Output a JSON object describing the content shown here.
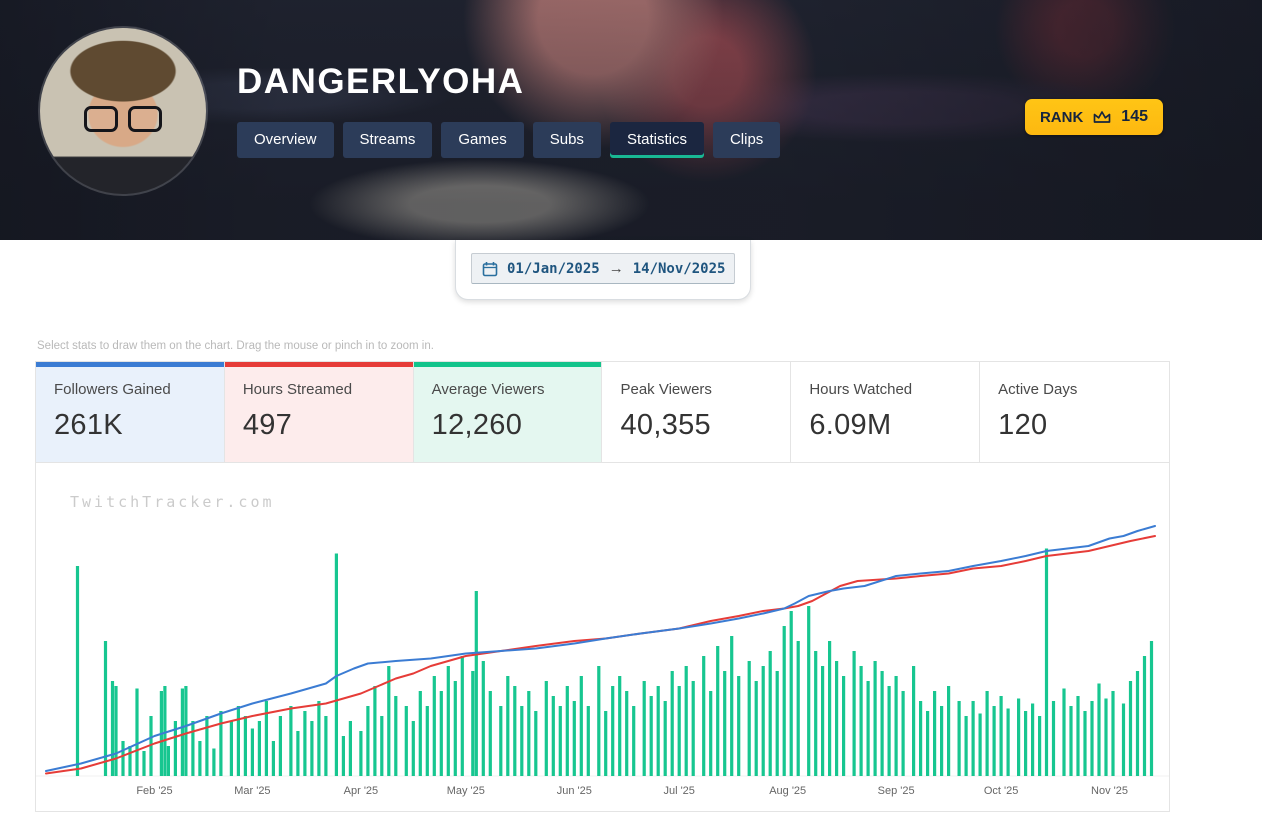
{
  "header": {
    "title": "DANGERLYOHA",
    "tabs": [
      {
        "label": "Overview",
        "active": false
      },
      {
        "label": "Streams",
        "active": false
      },
      {
        "label": "Games",
        "active": false
      },
      {
        "label": "Subs",
        "active": false
      },
      {
        "label": "Statistics",
        "active": true
      },
      {
        "label": "Clips",
        "active": false
      }
    ],
    "rank": {
      "label": "RANK",
      "value": "145"
    }
  },
  "date_range": {
    "start": "01/Jan/2025",
    "separator": "→",
    "end": "14/Nov/2025"
  },
  "hint": "Select stats to draw them on the chart. Drag the mouse or pinch in to zoom in.",
  "stats": [
    {
      "label": "Followers Gained",
      "value": "261K",
      "selected": true,
      "color": "#3b7cd3",
      "tint": "#e9f1fb"
    },
    {
      "label": "Hours Streamed",
      "value": "497",
      "selected": true,
      "color": "#e63c38",
      "tint": "#fdecec"
    },
    {
      "label": "Average Viewers",
      "value": "12,260",
      "selected": true,
      "color": "#12c48b",
      "tint": "#e4f7f0"
    },
    {
      "label": "Peak Viewers",
      "value": "40,355",
      "selected": false,
      "color": null,
      "tint": null
    },
    {
      "label": "Hours Watched",
      "value": "6.09M",
      "selected": false,
      "color": null,
      "tint": null
    },
    {
      "label": "Active Days",
      "value": "120",
      "selected": false,
      "color": null,
      "tint": null
    }
  ],
  "watermark": "TwitchTracker.com",
  "chart_data": {
    "type": "composite",
    "title": "",
    "x_unit": "day_of_year_2025",
    "x_range": [
      0,
      317
    ],
    "y_range": [
      0,
      100
    ],
    "y_unit": "relative_percent_of_plot_height",
    "grid": false,
    "legend": "none",
    "x_ticks": [
      {
        "day": 31,
        "label": "Feb '25"
      },
      {
        "day": 59,
        "label": "Mar '25"
      },
      {
        "day": 90,
        "label": "Apr '25"
      },
      {
        "day": 120,
        "label": "May '25"
      },
      {
        "day": 151,
        "label": "Jun '25"
      },
      {
        "day": 181,
        "label": "Jul '25"
      },
      {
        "day": 212,
        "label": "Aug '25"
      },
      {
        "day": 243,
        "label": "Sep '25"
      },
      {
        "day": 273,
        "label": "Oct '25"
      },
      {
        "day": 304,
        "label": "Nov '25"
      }
    ],
    "series": [
      {
        "name": "Average Viewers",
        "type": "bar",
        "color": "#17c690",
        "points": [
          [
            9,
            84
          ],
          [
            17,
            54
          ],
          [
            19,
            38
          ],
          [
            20,
            36
          ],
          [
            22,
            14
          ],
          [
            24,
            12
          ],
          [
            26,
            35
          ],
          [
            28,
            10
          ],
          [
            30,
            24
          ],
          [
            33,
            34
          ],
          [
            34,
            36
          ],
          [
            35,
            12
          ],
          [
            37,
            22
          ],
          [
            39,
            35
          ],
          [
            40,
            36
          ],
          [
            42,
            22
          ],
          [
            44,
            14
          ],
          [
            46,
            24
          ],
          [
            48,
            11
          ],
          [
            50,
            26
          ],
          [
            53,
            22
          ],
          [
            55,
            28
          ],
          [
            57,
            24
          ],
          [
            59,
            19
          ],
          [
            61,
            22
          ],
          [
            63,
            30
          ],
          [
            65,
            14
          ],
          [
            67,
            24
          ],
          [
            70,
            28
          ],
          [
            72,
            18
          ],
          [
            74,
            26
          ],
          [
            76,
            22
          ],
          [
            78,
            30
          ],
          [
            80,
            24
          ],
          [
            83,
            89
          ],
          [
            85,
            16
          ],
          [
            87,
            22
          ],
          [
            90,
            18
          ],
          [
            92,
            28
          ],
          [
            94,
            36
          ],
          [
            96,
            24
          ],
          [
            98,
            44
          ],
          [
            100,
            32
          ],
          [
            103,
            28
          ],
          [
            105,
            22
          ],
          [
            107,
            34
          ],
          [
            109,
            28
          ],
          [
            111,
            40
          ],
          [
            113,
            34
          ],
          [
            115,
            44
          ],
          [
            117,
            38
          ],
          [
            119,
            48
          ],
          [
            122,
            42
          ],
          [
            123,
            74
          ],
          [
            125,
            46
          ],
          [
            127,
            34
          ],
          [
            130,
            28
          ],
          [
            132,
            40
          ],
          [
            134,
            36
          ],
          [
            136,
            28
          ],
          [
            138,
            34
          ],
          [
            140,
            26
          ],
          [
            143,
            38
          ],
          [
            145,
            32
          ],
          [
            147,
            28
          ],
          [
            149,
            36
          ],
          [
            151,
            30
          ],
          [
            153,
            40
          ],
          [
            155,
            28
          ],
          [
            158,
            44
          ],
          [
            160,
            26
          ],
          [
            162,
            36
          ],
          [
            164,
            40
          ],
          [
            166,
            34
          ],
          [
            168,
            28
          ],
          [
            171,
            38
          ],
          [
            173,
            32
          ],
          [
            175,
            36
          ],
          [
            177,
            30
          ],
          [
            179,
            42
          ],
          [
            181,
            36
          ],
          [
            183,
            44
          ],
          [
            185,
            38
          ],
          [
            188,
            48
          ],
          [
            190,
            34
          ],
          [
            192,
            52
          ],
          [
            194,
            42
          ],
          [
            196,
            56
          ],
          [
            198,
            40
          ],
          [
            201,
            46
          ],
          [
            203,
            38
          ],
          [
            205,
            44
          ],
          [
            207,
            50
          ],
          [
            209,
            42
          ],
          [
            211,
            60
          ],
          [
            213,
            66
          ],
          [
            215,
            54
          ],
          [
            218,
            68
          ],
          [
            220,
            50
          ],
          [
            222,
            44
          ],
          [
            224,
            54
          ],
          [
            226,
            46
          ],
          [
            228,
            40
          ],
          [
            231,
            50
          ],
          [
            233,
            44
          ],
          [
            235,
            38
          ],
          [
            237,
            46
          ],
          [
            239,
            42
          ],
          [
            241,
            36
          ],
          [
            243,
            40
          ],
          [
            245,
            34
          ],
          [
            248,
            44
          ],
          [
            250,
            30
          ],
          [
            252,
            26
          ],
          [
            254,
            34
          ],
          [
            256,
            28
          ],
          [
            258,
            36
          ],
          [
            261,
            30
          ],
          [
            263,
            24
          ],
          [
            265,
            30
          ],
          [
            267,
            25
          ],
          [
            269,
            34
          ],
          [
            271,
            28
          ],
          [
            273,
            32
          ],
          [
            275,
            27
          ],
          [
            278,
            31
          ],
          [
            280,
            26
          ],
          [
            282,
            29
          ],
          [
            284,
            24
          ],
          [
            286,
            91
          ],
          [
            288,
            30
          ],
          [
            291,
            35
          ],
          [
            293,
            28
          ],
          [
            295,
            32
          ],
          [
            297,
            26
          ],
          [
            299,
            30
          ],
          [
            301,
            37
          ],
          [
            303,
            31
          ],
          [
            305,
            34
          ],
          [
            308,
            29
          ],
          [
            310,
            38
          ],
          [
            312,
            42
          ],
          [
            314,
            48
          ],
          [
            316,
            54
          ]
        ]
      },
      {
        "name": "Hours Streamed",
        "type": "line",
        "color": "#e63c38",
        "points": [
          [
            0,
            1
          ],
          [
            10,
            3
          ],
          [
            20,
            7
          ],
          [
            31,
            13
          ],
          [
            40,
            17
          ],
          [
            50,
            21
          ],
          [
            59,
            24
          ],
          [
            70,
            27
          ],
          [
            80,
            29
          ],
          [
            85,
            31
          ],
          [
            90,
            33
          ],
          [
            95,
            36
          ],
          [
            100,
            39
          ],
          [
            105,
            41
          ],
          [
            110,
            44
          ],
          [
            115,
            46
          ],
          [
            120,
            48
          ],
          [
            130,
            50
          ],
          [
            140,
            52
          ],
          [
            151,
            54
          ],
          [
            160,
            55
          ],
          [
            170,
            57
          ],
          [
            181,
            59
          ],
          [
            190,
            62
          ],
          [
            198,
            64
          ],
          [
            205,
            66
          ],
          [
            211,
            67
          ],
          [
            215,
            68
          ],
          [
            219,
            70
          ],
          [
            223,
            73
          ],
          [
            227,
            76
          ],
          [
            232,
            78
          ],
          [
            243,
            79
          ],
          [
            250,
            80
          ],
          [
            258,
            81
          ],
          [
            265,
            83
          ],
          [
            273,
            84
          ],
          [
            280,
            86
          ],
          [
            286,
            88
          ],
          [
            292,
            89
          ],
          [
            298,
            90
          ],
          [
            304,
            92
          ],
          [
            310,
            94
          ],
          [
            317,
            96
          ]
        ]
      },
      {
        "name": "Followers Gained",
        "type": "line",
        "color": "#3b7cd3",
        "points": [
          [
            0,
            2
          ],
          [
            10,
            5
          ],
          [
            20,
            9
          ],
          [
            31,
            16
          ],
          [
            40,
            20
          ],
          [
            50,
            25
          ],
          [
            59,
            29
          ],
          [
            70,
            33
          ],
          [
            80,
            37
          ],
          [
            83,
            40
          ],
          [
            88,
            43
          ],
          [
            92,
            45
          ],
          [
            100,
            46
          ],
          [
            110,
            47
          ],
          [
            120,
            49
          ],
          [
            130,
            50
          ],
          [
            140,
            51
          ],
          [
            151,
            53
          ],
          [
            160,
            55
          ],
          [
            170,
            57
          ],
          [
            181,
            59
          ],
          [
            190,
            61
          ],
          [
            198,
            63
          ],
          [
            205,
            65
          ],
          [
            211,
            67
          ],
          [
            214,
            69
          ],
          [
            218,
            72
          ],
          [
            224,
            74
          ],
          [
            228,
            75
          ],
          [
            234,
            76
          ],
          [
            243,
            80
          ],
          [
            250,
            81
          ],
          [
            258,
            82
          ],
          [
            265,
            84
          ],
          [
            273,
            86
          ],
          [
            280,
            88
          ],
          [
            286,
            90
          ],
          [
            292,
            91
          ],
          [
            298,
            92
          ],
          [
            304,
            95
          ],
          [
            308,
            96
          ],
          [
            312,
            98
          ],
          [
            317,
            100
          ]
        ]
      }
    ]
  }
}
